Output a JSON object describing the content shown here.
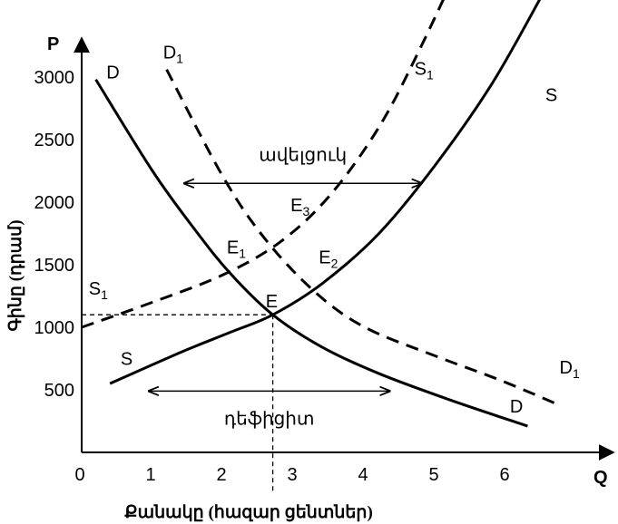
{
  "chart_data": {
    "type": "line",
    "title": "",
    "xlabel": "Քանակը (հազար ցենտներ)",
    "ylabel": "Գինը (դրամ)",
    "x_axis_letter": "Q",
    "y_axis_letter": "P",
    "xlim": [
      0,
      7.2
    ],
    "ylim": [
      0,
      3400
    ],
    "x_ticks": [
      0,
      1,
      2,
      3,
      4,
      5,
      6
    ],
    "y_ticks": [
      500,
      1000,
      1500,
      2000,
      2500,
      3000
    ],
    "series": [
      {
        "name": "D",
        "style": "solid",
        "x": [
          0.2,
          1.0,
          1.6,
          2.1,
          2.7,
          3.4,
          4.2,
          5.2,
          6.3
        ],
        "y": [
          2980,
          2250,
          1780,
          1430,
          1100,
          840,
          630,
          420,
          210
        ]
      },
      {
        "name": "S",
        "style": "solid",
        "x": [
          0.4,
          1.4,
          2.1,
          2.7,
          3.4,
          4.2,
          5.0,
          5.8,
          6.5
        ],
        "y": [
          550,
          800,
          960,
          1100,
          1350,
          1750,
          2300,
          2950,
          3650
        ]
      },
      {
        "name": "D₁",
        "style": "dashed",
        "x": [
          1.2,
          2.0,
          2.6,
          3.3,
          4.0,
          5.0,
          5.9,
          6.7
        ],
        "y": [
          3060,
          2200,
          1700,
          1280,
          1000,
          770,
          580,
          390
        ]
      },
      {
        "name": "S₁",
        "style": "dashed",
        "x": [
          0.0,
          1.0,
          2.0,
          2.8,
          3.5,
          4.2,
          4.8,
          5.5
        ],
        "y": [
          1000,
          1200,
          1420,
          1680,
          2050,
          2600,
          3250,
          4100
        ]
      }
    ],
    "curve_labels": [
      {
        "text": "D",
        "x": 0.35,
        "y": 3040
      },
      {
        "text": "D",
        "x": 6.05,
        "y": 370
      },
      {
        "text": "S",
        "x": 0.55,
        "y": 750
      },
      {
        "text": "S",
        "x": 6.55,
        "y": 2860
      },
      {
        "text": "D",
        "sub": "1",
        "x": 1.15,
        "y": 3200
      },
      {
        "text": "D",
        "sub": "1",
        "x": 6.75,
        "y": 680
      },
      {
        "text": "S",
        "sub": "1",
        "x": 0.1,
        "y": 1310
      },
      {
        "text": "S",
        "sub": "1",
        "x": 4.7,
        "y": 3070
      }
    ],
    "points": [
      {
        "text": "E",
        "x": 2.6,
        "y": 1210
      },
      {
        "text": "E",
        "sub": "1",
        "x": 2.05,
        "y": 1640
      },
      {
        "text": "E",
        "sub": "2",
        "x": 3.35,
        "y": 1560
      },
      {
        "text": "E",
        "sub": "3",
        "x": 2.95,
        "y": 1980
      }
    ],
    "equilibrium": {
      "x": 2.7,
      "y": 1100
    },
    "annotations": [
      {
        "text": "ավելցուկ",
        "x_from": 1.45,
        "x_to": 4.8,
        "y": 2150,
        "label_y": 2380
      },
      {
        "text": "դեֆիցիտ",
        "x_from": 0.95,
        "x_to": 4.35,
        "y": 490,
        "label_y": 270
      }
    ],
    "grid": false,
    "legend": "none"
  }
}
